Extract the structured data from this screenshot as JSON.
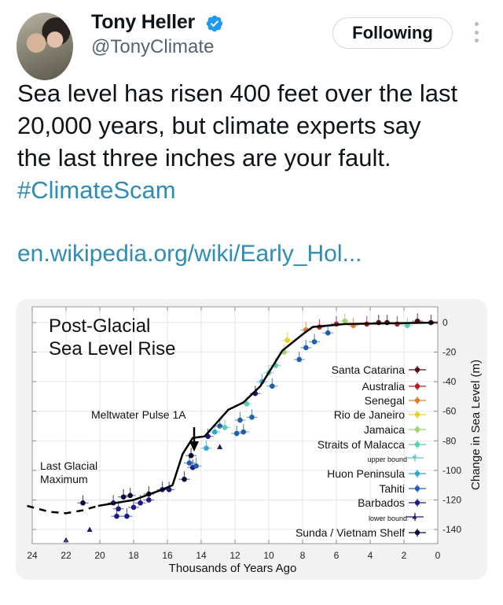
{
  "tweet": {
    "author": {
      "name": "Tony Heller",
      "handle": "@TonyClimate",
      "verified": true,
      "verified_color": "#1d9bf0"
    },
    "follow_button": {
      "label": "Following"
    },
    "more_icon": "vertical-ellipsis-icon",
    "text_lines": [
      "Sea level has risen 400 feet over the last",
      "20,000 years, but climate experts say",
      "the last three inches are your fault."
    ],
    "hashtag": "#ClimateScam",
    "link_text": "en.wikipedia.org/wiki/Early_Hol...",
    "colors": {
      "text": "#0f1419",
      "secondary": "#536471",
      "link": "#2a8fb8",
      "card_bg": "#f2f2f2"
    }
  },
  "chart_data": {
    "type": "scatter",
    "title": "Post-Glacial Sea Level Rise",
    "title_lines": [
      "Post-Glacial",
      "Sea Level Rise"
    ],
    "xlabel": "Thousands of Years Ago",
    "ylabel": "Change in Sea Level (m)",
    "xlim": [
      24,
      0
    ],
    "ylim": [
      -150,
      10
    ],
    "x_ticks": [
      24,
      22,
      20,
      18,
      16,
      14,
      12,
      10,
      8,
      6,
      4,
      2,
      0
    ],
    "y_ticks": [
      0,
      -20,
      -40,
      -60,
      -80,
      -100,
      -120,
      -140
    ],
    "grid": true,
    "annotations": [
      {
        "text": "Meltwater Pulse 1A",
        "x": 14.5,
        "y": -55
      },
      {
        "text_lines": [
          "Last Glacial",
          "Maximum"
        ],
        "x": 23,
        "y": -100
      }
    ],
    "mean_curve": {
      "dashed": [
        [
          24.3,
          -124
        ],
        [
          23,
          -128
        ],
        [
          22,
          -129
        ],
        [
          21,
          -127
        ],
        [
          20.1,
          -124
        ]
      ],
      "solid": [
        [
          20.1,
          -124
        ],
        [
          18,
          -120
        ],
        [
          16.3,
          -113
        ],
        [
          15.7,
          -110
        ],
        [
          15.1,
          -89
        ],
        [
          14.5,
          -78
        ],
        [
          13.8,
          -77
        ],
        [
          13.1,
          -68
        ],
        [
          12.4,
          -59
        ],
        [
          11.5,
          -54
        ],
        [
          10.5,
          -43
        ],
        [
          9.2,
          -19
        ],
        [
          8,
          -8
        ],
        [
          7.4,
          -3
        ],
        [
          5.5,
          -1
        ],
        [
          0,
          0
        ]
      ]
    },
    "legend": [
      {
        "label": "Santa Catarina",
        "color": "#5a0a14",
        "marker": "circle"
      },
      {
        "label": "Australia",
        "color": "#c01b22",
        "marker": "circle"
      },
      {
        "label": "Senegal",
        "color": "#e27a2a",
        "marker": "circle"
      },
      {
        "label": "Rio de Janeiro",
        "color": "#e7d21e",
        "marker": "circle"
      },
      {
        "label": "Jamaica",
        "color": "#9ad66a",
        "marker": "circle"
      },
      {
        "label": "Straits of Malacca",
        "color": "#52d1b4",
        "marker": "circle"
      },
      {
        "label": "upper bound",
        "color": "#5dc5d4",
        "marker": "triangle-down",
        "small": true
      },
      {
        "label": "Huon Peninsula",
        "color": "#29a9d6",
        "marker": "circle"
      },
      {
        "label": "Tahiti",
        "color": "#1f5fb0",
        "marker": "circle"
      },
      {
        "label": "Barbados",
        "color": "#1a1a8a",
        "marker": "circle"
      },
      {
        "label": "lower bound",
        "color": "#1a1a6a",
        "marker": "triangle-up",
        "small": true
      },
      {
        "label": "Sunda / Vietnam Shelf",
        "color": "#0b0b3a",
        "marker": "circle"
      }
    ],
    "points": [
      {
        "x": 22.0,
        "y": -147,
        "series": "lower bound"
      },
      {
        "x": 20.6,
        "y": -140,
        "series": "lower bound"
      },
      {
        "x": 21.0,
        "y": -122,
        "series": "Sunda / Vietnam Shelf"
      },
      {
        "x": 19.2,
        "y": -122,
        "series": "Barbados"
      },
      {
        "x": 18.9,
        "y": -126,
        "series": "Barbados"
      },
      {
        "x": 19.0,
        "y": -131,
        "series": "Barbados"
      },
      {
        "x": 18.4,
        "y": -131,
        "series": "Barbados"
      },
      {
        "x": 18.6,
        "y": -118,
        "series": "Sunda / Vietnam Shelf"
      },
      {
        "x": 18.2,
        "y": -117,
        "series": "Sunda / Vietnam Shelf"
      },
      {
        "x": 18.0,
        "y": -125,
        "series": "Barbados"
      },
      {
        "x": 17.6,
        "y": -122,
        "series": "Barbados"
      },
      {
        "x": 17.1,
        "y": -120,
        "series": "Barbados"
      },
      {
        "x": 17.1,
        "y": -116,
        "series": "Sunda / Vietnam Shelf"
      },
      {
        "x": 16.3,
        "y": -113,
        "series": "Barbados"
      },
      {
        "x": 15.9,
        "y": -113,
        "series": "Barbados"
      },
      {
        "x": 15.0,
        "y": -106,
        "series": "Sunda / Vietnam Shelf"
      },
      {
        "x": 14.7,
        "y": -95,
        "series": "Tahiti"
      },
      {
        "x": 14.5,
        "y": -98,
        "series": "Barbados"
      },
      {
        "x": 14.3,
        "y": -97,
        "series": "Tahiti"
      },
      {
        "x": 14.6,
        "y": -90,
        "series": "Sunda / Vietnam Shelf"
      },
      {
        "x": 13.7,
        "y": -85,
        "series": "Huon Peninsula"
      },
      {
        "x": 12.9,
        "y": -84,
        "series": "lower bound"
      },
      {
        "x": 13.6,
        "y": -77,
        "series": "Barbados"
      },
      {
        "x": 13.2,
        "y": -74,
        "series": "Huon Peninsula"
      },
      {
        "x": 12.9,
        "y": -70,
        "series": "Tahiti"
      },
      {
        "x": 12.6,
        "y": -71,
        "series": "Straits of Malacca"
      },
      {
        "x": 11.9,
        "y": -75,
        "series": "Tahiti"
      },
      {
        "x": 11.5,
        "y": -74,
        "series": "Tahiti"
      },
      {
        "x": 11.3,
        "y": -55,
        "series": "Straits of Malacca"
      },
      {
        "x": 11.7,
        "y": -66,
        "series": "Tahiti"
      },
      {
        "x": 11.0,
        "y": -64,
        "series": "Tahiti"
      },
      {
        "x": 10.8,
        "y": -48,
        "series": "Barbados"
      },
      {
        "x": 10.4,
        "y": -40,
        "series": "Huon Peninsula"
      },
      {
        "x": 10.0,
        "y": -34,
        "series": "Straits of Malacca"
      },
      {
        "x": 9.6,
        "y": -29,
        "series": "Straits of Malacca"
      },
      {
        "x": 9.8,
        "y": -43,
        "series": "Tahiti"
      },
      {
        "x": 9.1,
        "y": -20,
        "series": "Jamaica"
      },
      {
        "x": 8.9,
        "y": -12,
        "series": "Rio de Janeiro"
      },
      {
        "x": 8.2,
        "y": -25,
        "series": "Tahiti"
      },
      {
        "x": 7.8,
        "y": -17,
        "series": "Tahiti"
      },
      {
        "x": 7.3,
        "y": -13,
        "series": "Tahiti"
      },
      {
        "x": 7.8,
        "y": -5,
        "series": "Senegal"
      },
      {
        "x": 7.0,
        "y": -3,
        "series": "Australia"
      },
      {
        "x": 6.5,
        "y": -7,
        "series": "Tahiti"
      },
      {
        "x": 6.0,
        "y": -1,
        "series": "Australia"
      },
      {
        "x": 5.5,
        "y": 1,
        "series": "Jamaica"
      },
      {
        "x": 5.0,
        "y": -2,
        "series": "Senegal"
      },
      {
        "x": 4.2,
        "y": -1,
        "series": "Australia"
      },
      {
        "x": 3.5,
        "y": 0,
        "series": "Santa Catarina"
      },
      {
        "x": 3.0,
        "y": 0,
        "series": "Santa Catarina"
      },
      {
        "x": 2.4,
        "y": -1,
        "series": "Australia"
      },
      {
        "x": 1.8,
        "y": -2,
        "series": "Straits of Malacca"
      },
      {
        "x": 1.2,
        "y": 1,
        "series": "Santa Catarina"
      },
      {
        "x": 0.4,
        "y": 0,
        "series": "Santa Catarina"
      }
    ],
    "legend_position": "lower right (inside plot)"
  }
}
